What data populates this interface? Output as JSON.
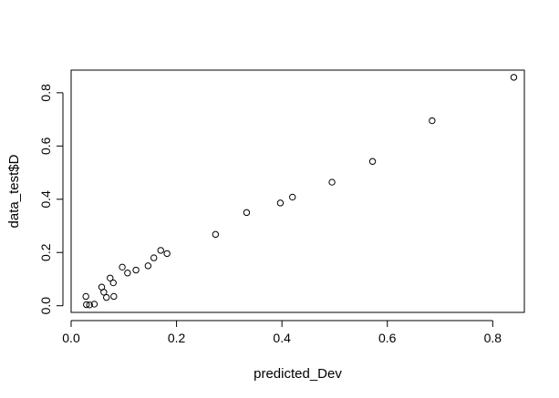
{
  "chart_data": {
    "type": "scatter",
    "title": "",
    "xlabel": "predicted_Dev",
    "ylabel": "data_test$D",
    "xlim": [
      0.0,
      0.86
    ],
    "ylim": [
      -0.025,
      0.885
    ],
    "x_ticks": [
      0.0,
      0.2,
      0.4,
      0.6,
      0.8
    ],
    "x_tick_labels": [
      "0.0",
      "0.2",
      "0.4",
      "0.6",
      "0.8"
    ],
    "y_ticks": [
      0.0,
      0.2,
      0.4,
      0.6,
      0.8
    ],
    "y_tick_labels": [
      "0.0",
      "0.2",
      "0.4",
      "0.6",
      "0.8"
    ],
    "grid": false,
    "marker": "open-circle",
    "colors": {
      "marker": "#000000",
      "axis": "#000000",
      "background": "#ffffff"
    },
    "points": [
      {
        "x": 0.028,
        "y": 0.035
      },
      {
        "x": 0.029,
        "y": 0.004
      },
      {
        "x": 0.035,
        "y": 0.003
      },
      {
        "x": 0.044,
        "y": 0.006
      },
      {
        "x": 0.058,
        "y": 0.07
      },
      {
        "x": 0.062,
        "y": 0.051
      },
      {
        "x": 0.067,
        "y": 0.031
      },
      {
        "x": 0.074,
        "y": 0.104
      },
      {
        "x": 0.08,
        "y": 0.086
      },
      {
        "x": 0.081,
        "y": 0.035
      },
      {
        "x": 0.097,
        "y": 0.145
      },
      {
        "x": 0.107,
        "y": 0.123
      },
      {
        "x": 0.123,
        "y": 0.134
      },
      {
        "x": 0.146,
        "y": 0.15
      },
      {
        "x": 0.157,
        "y": 0.18
      },
      {
        "x": 0.17,
        "y": 0.208
      },
      {
        "x": 0.182,
        "y": 0.196
      },
      {
        "x": 0.274,
        "y": 0.268
      },
      {
        "x": 0.333,
        "y": 0.35
      },
      {
        "x": 0.397,
        "y": 0.386
      },
      {
        "x": 0.42,
        "y": 0.408
      },
      {
        "x": 0.495,
        "y": 0.464
      },
      {
        "x": 0.572,
        "y": 0.542
      },
      {
        "x": 0.685,
        "y": 0.695
      },
      {
        "x": 0.84,
        "y": 0.858
      }
    ]
  }
}
